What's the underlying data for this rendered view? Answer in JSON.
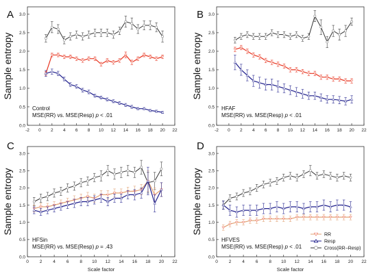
{
  "figure": {
    "ylabel": "Sample entropy",
    "xlabel": "Scale factor",
    "colors": {
      "RR": "#e8321e",
      "Resp": "#1e1e8c",
      "Cross": "#333333",
      "RR_marker": "#f08070",
      "Resp_marker": "#6a6ab0"
    }
  },
  "chart_data": [
    {
      "type": "line",
      "panel": "A",
      "annotations": [
        "Control",
        "MSE(RR) vs. MSE(Resp)",
        "p",
        " < .01"
      ],
      "xlim": [
        -2,
        22
      ],
      "ylim": [
        0.0,
        3.2
      ],
      "xticks": [
        "-2",
        "0",
        "2",
        "4",
        "6",
        "8",
        "10",
        "12",
        "14",
        "16",
        "18",
        "20",
        "22"
      ],
      "yticks": [
        "0.0",
        "0.5",
        "1.0",
        "1.5",
        "2.0",
        "2.5",
        "3.0"
      ],
      "x": [
        1,
        2,
        3,
        4,
        5,
        6,
        7,
        8,
        9,
        10,
        11,
        12,
        13,
        14,
        15,
        16,
        17,
        18,
        19,
        20
      ],
      "series": [
        {
          "key": "Cross",
          "values": [
            2.35,
            2.65,
            2.6,
            2.3,
            2.4,
            2.45,
            2.4,
            2.45,
            2.5,
            2.5,
            2.5,
            2.45,
            2.55,
            2.8,
            2.75,
            2.6,
            2.7,
            2.7,
            2.65,
            2.4
          ],
          "err": [
            0.1,
            0.15,
            0.12,
            0.1,
            0.1,
            0.1,
            0.1,
            0.1,
            0.1,
            0.1,
            0.1,
            0.1,
            0.1,
            0.15,
            0.15,
            0.12,
            0.12,
            0.12,
            0.12,
            0.15
          ]
        },
        {
          "key": "RR",
          "values": [
            1.4,
            1.9,
            1.9,
            1.85,
            1.85,
            1.8,
            1.75,
            1.8,
            1.8,
            1.65,
            1.75,
            1.7,
            1.75,
            1.9,
            1.7,
            1.8,
            1.9,
            1.85,
            1.8,
            1.85
          ],
          "err": [
            0.05,
            0.05,
            0.05,
            0.05,
            0.05,
            0.05,
            0.05,
            0.05,
            0.05,
            0.05,
            0.05,
            0.05,
            0.05,
            0.08,
            0.06,
            0.05,
            0.05,
            0.05,
            0.05,
            0.05
          ]
        },
        {
          "key": "Resp",
          "values": [
            1.4,
            1.45,
            1.4,
            1.25,
            1.1,
            1.05,
            0.95,
            0.9,
            0.8,
            0.75,
            0.7,
            0.65,
            0.6,
            0.55,
            0.5,
            0.45,
            0.45,
            0.4,
            0.38,
            0.35
          ],
          "err": [
            0.08,
            0.07,
            0.06,
            0.05,
            0.05,
            0.05,
            0.05,
            0.05,
            0.04,
            0.04,
            0.04,
            0.04,
            0.04,
            0.04,
            0.04,
            0.03,
            0.03,
            0.03,
            0.03,
            0.03
          ]
        }
      ]
    },
    {
      "type": "line",
      "panel": "B",
      "annotations": [
        "HFAF",
        "MSE(RR) vs. MSE(Resp)",
        "p",
        " < .01"
      ],
      "xlim": [
        -2,
        22
      ],
      "ylim": [
        0.0,
        3.2
      ],
      "xticks": [
        "-2",
        "0",
        "2",
        "4",
        "6",
        "8",
        "10",
        "12",
        "14",
        "16",
        "18",
        "20",
        "22"
      ],
      "yticks": [
        "0.0",
        "0.5",
        "1.0",
        "1.5",
        "2.0",
        "2.5",
        "3.0"
      ],
      "x": [
        1,
        2,
        3,
        4,
        5,
        6,
        7,
        8,
        9,
        10,
        11,
        12,
        13,
        14,
        15,
        16,
        17,
        18,
        19,
        20
      ],
      "series": [
        {
          "key": "Cross",
          "values": [
            2.3,
            2.4,
            2.45,
            2.4,
            2.4,
            2.4,
            2.5,
            2.45,
            2.45,
            2.4,
            2.45,
            2.35,
            2.4,
            2.95,
            2.65,
            2.25,
            2.55,
            2.45,
            2.55,
            2.8
          ],
          "err": [
            0.08,
            0.08,
            0.08,
            0.08,
            0.08,
            0.08,
            0.08,
            0.08,
            0.08,
            0.08,
            0.08,
            0.08,
            0.08,
            0.15,
            0.2,
            0.15,
            0.15,
            0.15,
            0.15,
            0.1
          ]
        },
        {
          "key": "RR",
          "values": [
            2.05,
            2.1,
            2.0,
            1.9,
            1.85,
            1.75,
            1.7,
            1.65,
            1.6,
            1.5,
            1.5,
            1.45,
            1.4,
            1.4,
            1.3,
            1.3,
            1.25,
            1.25,
            1.2,
            1.2
          ],
          "err": [
            0.06,
            0.06,
            0.06,
            0.06,
            0.06,
            0.06,
            0.06,
            0.06,
            0.06,
            0.06,
            0.06,
            0.06,
            0.06,
            0.06,
            0.06,
            0.06,
            0.06,
            0.06,
            0.06,
            0.06
          ]
        },
        {
          "key": "Resp",
          "values": [
            1.7,
            1.5,
            1.35,
            1.2,
            1.15,
            1.1,
            1.1,
            1.05,
            1.0,
            0.95,
            0.9,
            0.85,
            0.8,
            0.8,
            0.75,
            0.7,
            0.7,
            0.68,
            0.65,
            0.7
          ],
          "err": [
            0.2,
            0.15,
            0.15,
            0.15,
            0.15,
            0.15,
            0.15,
            0.15,
            0.12,
            0.12,
            0.12,
            0.12,
            0.1,
            0.1,
            0.1,
            0.1,
            0.1,
            0.1,
            0.1,
            0.1
          ]
        }
      ]
    },
    {
      "type": "line",
      "panel": "C",
      "annotations": [
        "HFSin",
        "MSE(RR) vs. MSE(Resp)",
        "p",
        " = .43"
      ],
      "xlim": [
        0,
        22
      ],
      "ylim": [
        0.0,
        3.2
      ],
      "xticks": [
        "0",
        "2",
        "4",
        "6",
        "8",
        "10",
        "12",
        "14",
        "16",
        "18",
        "20",
        "22"
      ],
      "yticks": [
        "0.0",
        "0.5",
        "1.0",
        "1.5",
        "2.0",
        "2.5",
        "3.0"
      ],
      "x": [
        1,
        2,
        3,
        4,
        5,
        6,
        7,
        8,
        9,
        10,
        11,
        12,
        13,
        14,
        15,
        16,
        17,
        18,
        19,
        20
      ],
      "series": [
        {
          "key": "Cross",
          "values": [
            1.6,
            1.7,
            1.75,
            1.85,
            1.9,
            2.0,
            2.05,
            2.15,
            2.2,
            2.3,
            2.35,
            2.5,
            2.4,
            2.45,
            2.5,
            2.45,
            2.6,
            2.15,
            2.2,
            2.55
          ],
          "err": [
            0.12,
            0.12,
            0.12,
            0.12,
            0.12,
            0.12,
            0.12,
            0.12,
            0.12,
            0.12,
            0.15,
            0.15,
            0.15,
            0.15,
            0.15,
            0.15,
            0.2,
            0.3,
            0.25,
            0.2
          ]
        },
        {
          "key": "RR",
          "values": [
            1.4,
            1.45,
            1.45,
            1.5,
            1.55,
            1.6,
            1.65,
            1.7,
            1.75,
            1.7,
            1.8,
            1.8,
            1.85,
            1.85,
            1.9,
            1.9,
            1.95,
            2.2,
            1.8,
            1.95
          ],
          "err": [
            0.1,
            0.1,
            0.1,
            0.1,
            0.1,
            0.1,
            0.12,
            0.12,
            0.12,
            0.12,
            0.12,
            0.12,
            0.12,
            0.12,
            0.12,
            0.15,
            0.15,
            0.3,
            0.2,
            0.2
          ]
        },
        {
          "key": "Resp",
          "values": [
            1.35,
            1.3,
            1.35,
            1.4,
            1.45,
            1.5,
            1.55,
            1.6,
            1.6,
            1.65,
            1.7,
            1.6,
            1.7,
            1.7,
            1.8,
            1.8,
            1.85,
            2.2,
            1.55,
            1.95
          ],
          "err": [
            0.1,
            0.1,
            0.1,
            0.1,
            0.1,
            0.1,
            0.12,
            0.12,
            0.12,
            0.12,
            0.12,
            0.12,
            0.12,
            0.12,
            0.12,
            0.15,
            0.15,
            0.4,
            0.25,
            0.2
          ]
        }
      ]
    },
    {
      "type": "line",
      "panel": "D",
      "annotations": [
        "HFVES",
        "MSE(RR) vs. MSE(Resp)",
        "p",
        " < .01"
      ],
      "xlim": [
        0,
        22
      ],
      "ylim": [
        0.0,
        3.2
      ],
      "xticks": [
        "0",
        "2",
        "4",
        "6",
        "8",
        "10",
        "12",
        "14",
        "16",
        "18",
        "20",
        "22"
      ],
      "yticks": [
        "0.0",
        "0.5",
        "1.0",
        "1.5",
        "2.0",
        "2.5",
        "3.0"
      ],
      "x": [
        1,
        2,
        3,
        4,
        5,
        6,
        7,
        8,
        9,
        10,
        11,
        12,
        13,
        14,
        15,
        16,
        17,
        18,
        19,
        20
      ],
      "legend": {
        "placement": "bottom-right",
        "entries": [
          {
            "key": "RR",
            "label": "RR"
          },
          {
            "key": "Resp",
            "label": "Resp"
          },
          {
            "key": "Cross",
            "label": "Cross(RR−Resp)"
          }
        ]
      },
      "series": [
        {
          "key": "Cross",
          "values": [
            1.5,
            1.7,
            1.75,
            1.85,
            1.9,
            2.0,
            2.1,
            2.15,
            2.2,
            2.3,
            2.35,
            2.3,
            2.4,
            2.5,
            2.35,
            2.4,
            2.35,
            2.3,
            2.35,
            2.3
          ],
          "err": [
            0.12,
            0.1,
            0.1,
            0.1,
            0.1,
            0.1,
            0.1,
            0.1,
            0.1,
            0.1,
            0.1,
            0.1,
            0.1,
            0.15,
            0.1,
            0.1,
            0.1,
            0.1,
            0.1,
            0.1
          ]
        },
        {
          "key": "Resp",
          "values": [
            1.5,
            1.35,
            1.3,
            1.35,
            1.35,
            1.35,
            1.4,
            1.4,
            1.45,
            1.4,
            1.45,
            1.45,
            1.4,
            1.45,
            1.45,
            1.5,
            1.45,
            1.5,
            1.5,
            1.45
          ],
          "err": [
            0.12,
            0.15,
            0.15,
            0.15,
            0.15,
            0.15,
            0.15,
            0.15,
            0.15,
            0.15,
            0.15,
            0.15,
            0.15,
            0.15,
            0.15,
            0.15,
            0.15,
            0.15,
            0.15,
            0.15
          ]
        },
        {
          "key": "RR",
          "values": [
            0.85,
            0.95,
            1.0,
            1.0,
            1.05,
            1.05,
            1.1,
            1.1,
            1.1,
            1.1,
            1.1,
            1.15,
            1.15,
            1.15,
            1.15,
            1.15,
            1.15,
            1.15,
            1.15,
            1.15
          ],
          "err": [
            0.08,
            0.08,
            0.08,
            0.08,
            0.08,
            0.08,
            0.08,
            0.08,
            0.08,
            0.08,
            0.08,
            0.08,
            0.08,
            0.08,
            0.08,
            0.08,
            0.08,
            0.08,
            0.08,
            0.08
          ]
        }
      ]
    }
  ]
}
